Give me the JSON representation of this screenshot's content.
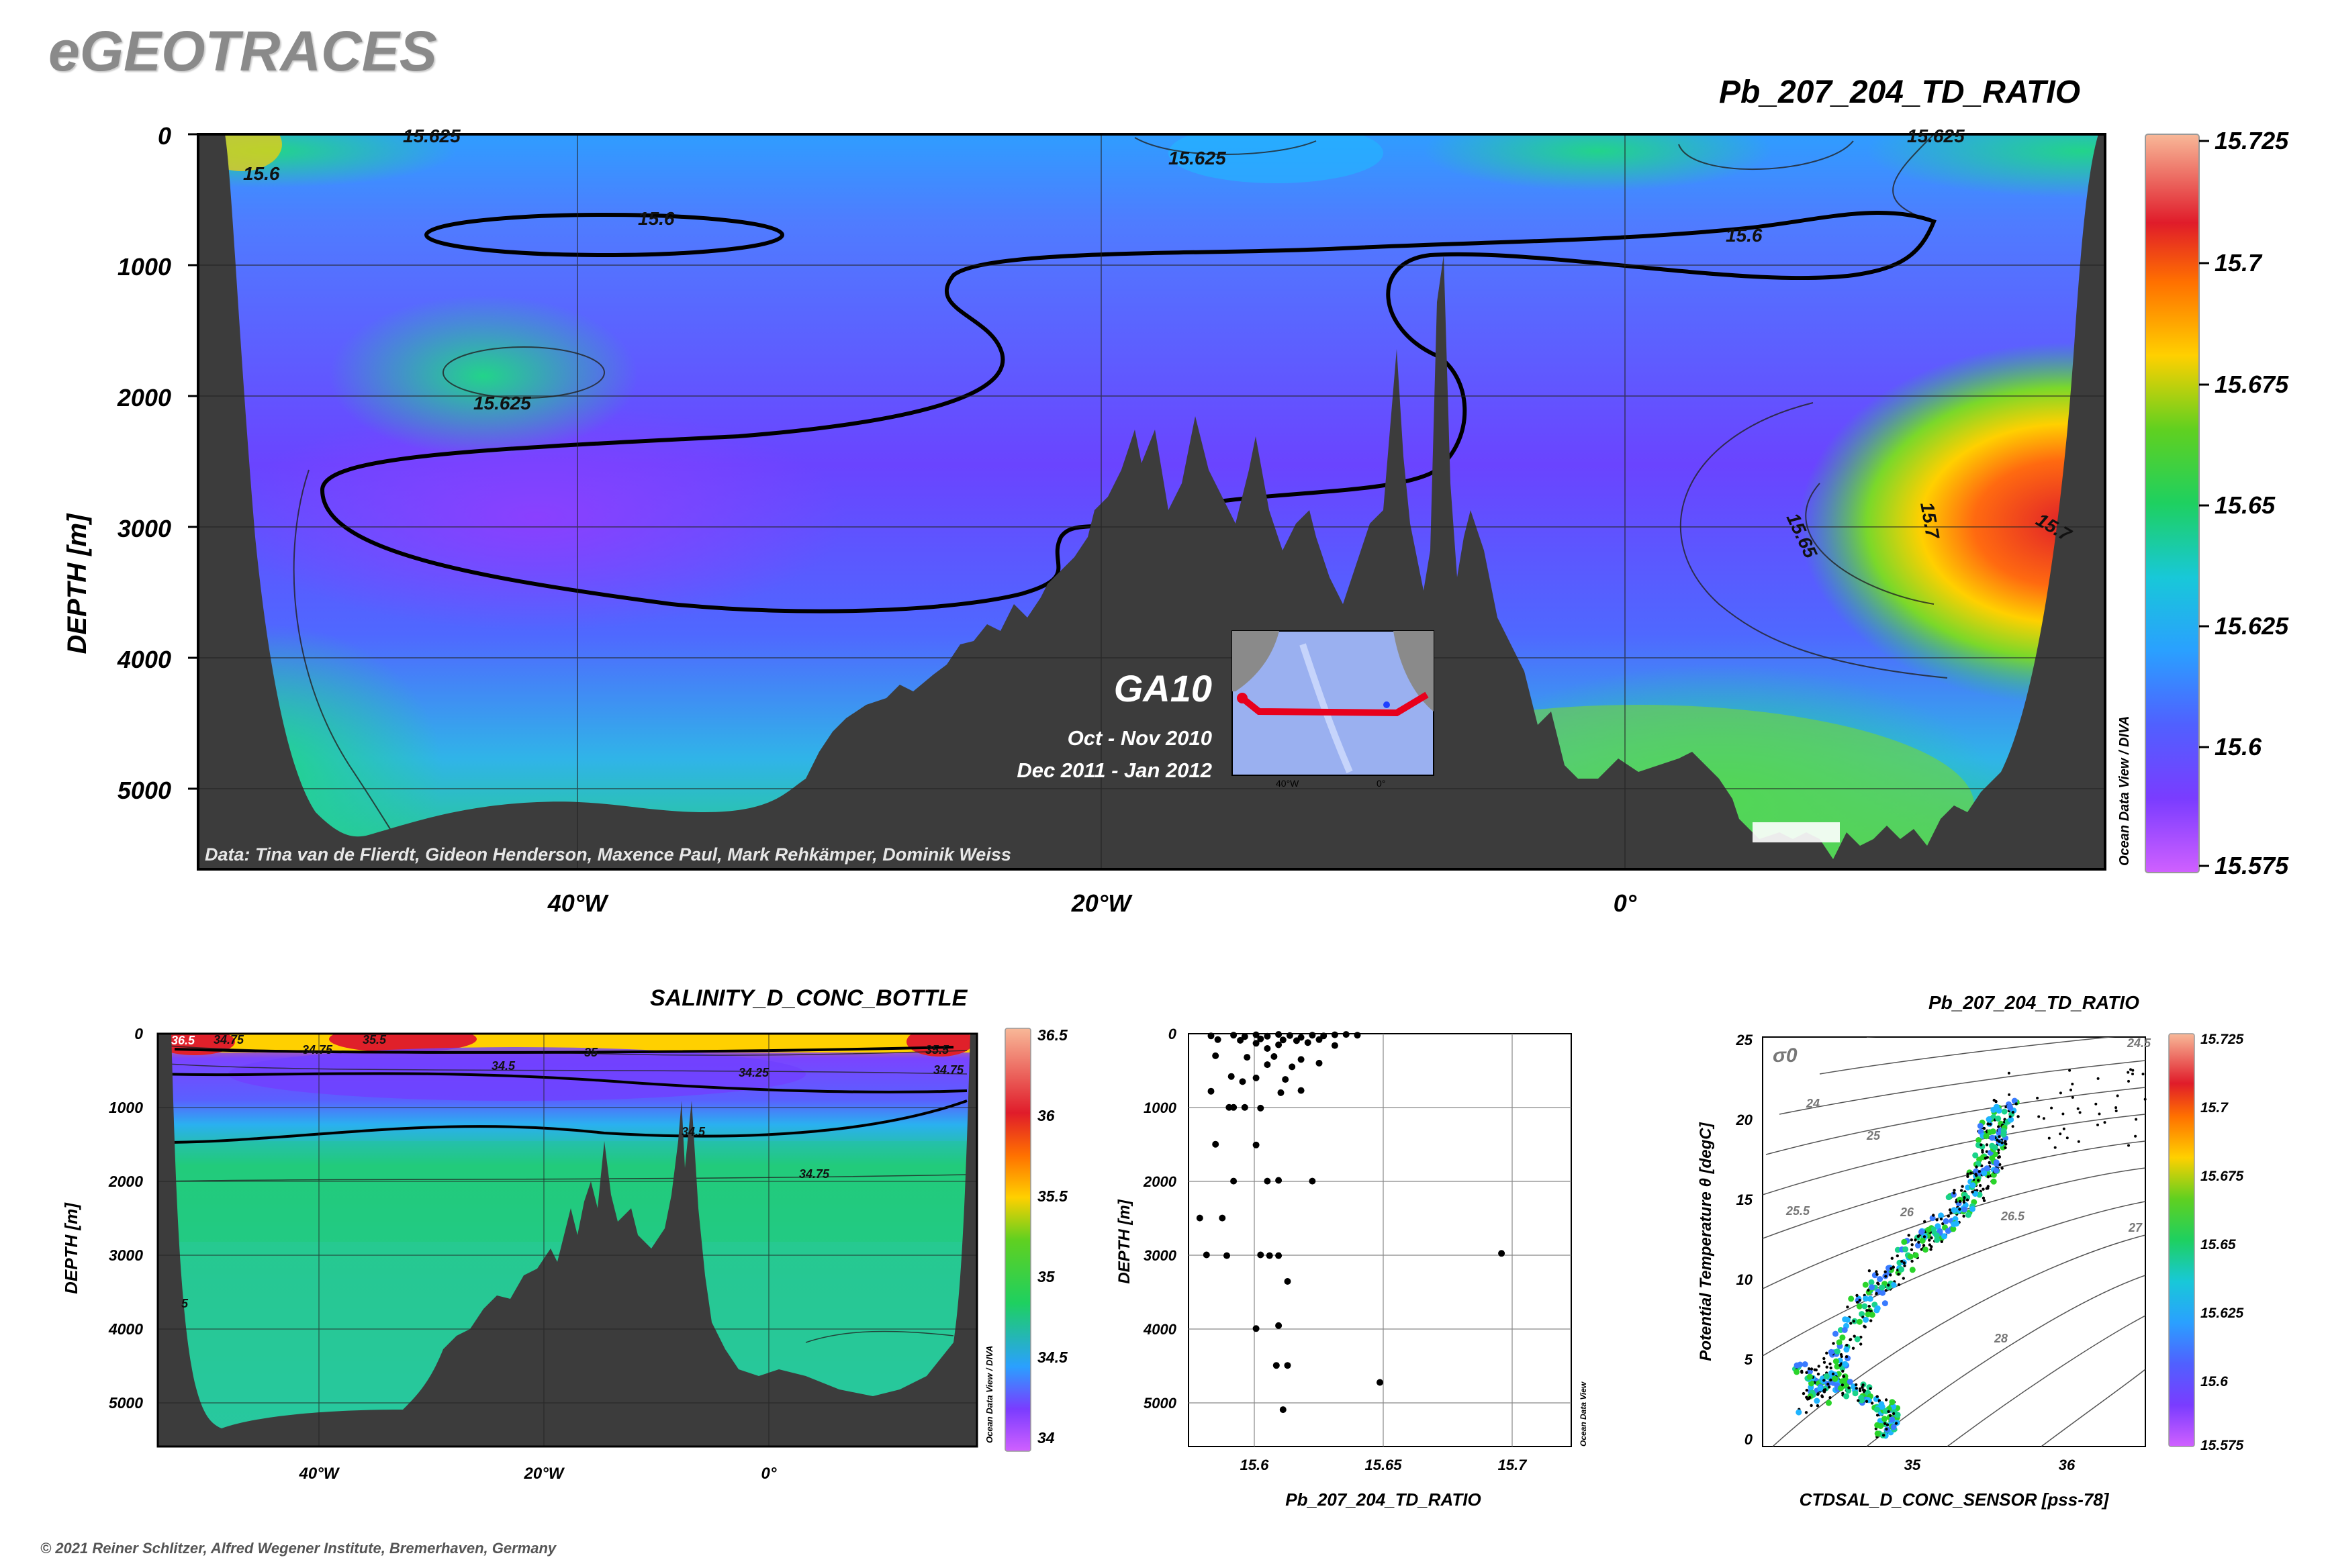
{
  "brand": "eGEOTRACES",
  "footer": "© 2021 Reiner Schlitzer, Alfred Wegener Institute, Bremerhaven, Germany",
  "odv_vertical_label": "Ocean Data View / DIVA",
  "odv_small_label": "Ocean Data View",
  "colors": {
    "seafloor": "#3c3c3c",
    "accent_track": "#e8001c",
    "colormap": [
      "#cc44ff",
      "#6a40ff",
      "#3a7bff",
      "#1fb4ff",
      "#19d38a",
      "#2ad42a",
      "#8adb1c",
      "#ffd000",
      "#ff8a00",
      "#e0202a",
      "#f0b0a0"
    ]
  },
  "chart_data": [
    {
      "id": "main_section",
      "type": "heatmap",
      "title": "Pb_207_204_TD_RATIO",
      "ylabel": "DEPTH [m]",
      "xlabel": "",
      "x_ticks": [
        "40°W",
        "20°W",
        "0°"
      ],
      "y_ticks": [
        "0",
        "1000",
        "2000",
        "3000",
        "4000",
        "5000"
      ],
      "ylim": [
        0,
        5600
      ],
      "colorbar": {
        "min": 15.575,
        "max": 15.725,
        "tick_labels": [
          "15.725",
          "15.7",
          "15.675",
          "15.65",
          "15.625",
          "15.6",
          "15.575"
        ]
      },
      "contour_labels": [
        "15.625",
        "15.6",
        "15.6",
        "15.625",
        "15.6",
        "15.625",
        "15.625",
        "15.65",
        "15.7",
        "15.7"
      ],
      "data_credit": "Data: Tina van de Flierdt, Gideon Henderson, Maxence Paul, Mark Rehkämper, Dominik Weiss",
      "inset": {
        "cruise": "GA10",
        "periods": [
          "Oct - Nov 2010",
          "Dec 2011 - Jan 2012"
        ],
        "axis_labels": [
          "40°W",
          "0°"
        ]
      }
    },
    {
      "id": "salinity_section",
      "type": "heatmap",
      "title": "SALINITY_D_CONC_BOTTLE",
      "ylabel": "DEPTH [m]",
      "x_ticks": [
        "40°W",
        "20°W",
        "0°"
      ],
      "y_ticks": [
        "0",
        "1000",
        "2000",
        "3000",
        "4000",
        "5000"
      ],
      "ylim": [
        0,
        5600
      ],
      "colorbar": {
        "min": 34,
        "max": 36.5,
        "tick_labels": [
          "36.5",
          "36",
          "35.5",
          "35",
          "34.5",
          "34"
        ]
      },
      "contour_labels": [
        "34.75",
        "35.5",
        "35",
        "34.75",
        "35.5",
        "34.5",
        "34.25",
        "34.75",
        "34.5",
        "34.75",
        "5",
        "36.5"
      ]
    },
    {
      "id": "profile_scatter",
      "type": "scatter",
      "title": "",
      "xlabel": "Pb_207_204_TD_RATIO",
      "ylabel": "DEPTH [m]",
      "xlim": [
        15.58,
        15.75
      ],
      "ylim": [
        5600,
        0
      ],
      "x_ticks": [
        "15.6",
        "15.65",
        "15.7"
      ],
      "y_ticks": [
        "0",
        "1000",
        "2000",
        "3000",
        "4000",
        "5000"
      ],
      "points": [
        [
          15.59,
          30
        ],
        [
          15.6,
          20
        ],
        [
          15.605,
          40
        ],
        [
          15.61,
          15
        ],
        [
          15.615,
          35
        ],
        [
          15.62,
          10
        ],
        [
          15.625,
          25
        ],
        [
          15.63,
          50
        ],
        [
          15.635,
          20
        ],
        [
          15.64,
          30
        ],
        [
          15.645,
          15
        ],
        [
          15.65,
          10
        ],
        [
          15.655,
          20
        ],
        [
          15.593,
          80
        ],
        [
          15.603,
          90
        ],
        [
          15.612,
          70
        ],
        [
          15.622,
          85
        ],
        [
          15.628,
          95
        ],
        [
          15.638,
          80
        ],
        [
          15.61,
          130
        ],
        [
          15.62,
          150
        ],
        [
          15.633,
          120
        ],
        [
          15.615,
          200
        ],
        [
          15.645,
          160
        ],
        [
          15.592,
          300
        ],
        [
          15.606,
          320
        ],
        [
          15.618,
          310
        ],
        [
          15.63,
          350
        ],
        [
          15.615,
          420
        ],
        [
          15.626,
          450
        ],
        [
          15.638,
          400
        ],
        [
          15.599,
          580
        ],
        [
          15.61,
          600
        ],
        [
          15.623,
          620
        ],
        [
          15.59,
          780
        ],
        [
          15.604,
          650
        ],
        [
          15.621,
          800
        ],
        [
          15.63,
          770
        ],
        [
          15.598,
          1000
        ],
        [
          15.605,
          1000
        ],
        [
          15.6,
          1000
        ],
        [
          15.612,
          1010
        ],
        [
          15.592,
          1500
        ],
        [
          15.61,
          1510
        ],
        [
          15.6,
          2000
        ],
        [
          15.615,
          2000
        ],
        [
          15.62,
          1990
        ],
        [
          15.635,
          2000
        ],
        [
          15.585,
          2500
        ],
        [
          15.595,
          2500
        ],
        [
          15.588,
          3000
        ],
        [
          15.597,
          3010
        ],
        [
          15.612,
          3000
        ],
        [
          15.616,
          3010
        ],
        [
          15.62,
          3010
        ],
        [
          15.624,
          3360
        ],
        [
          15.62,
          3960
        ],
        [
          15.61,
          4000
        ],
        [
          15.624,
          4500
        ],
        [
          15.619,
          4500
        ],
        [
          15.665,
          4730
        ],
        [
          15.622,
          5100
        ],
        [
          15.719,
          2980
        ]
      ]
    },
    {
      "id": "ts_diagram",
      "type": "scatter",
      "title": "Pb_207_204_TD_RATIO",
      "xlabel": "CTDSAL_D_CONC_SENSOR [pss-78]",
      "ylabel": "Potential Temperature θ [degC]",
      "xlim": [
        34.0,
        36.5
      ],
      "ylim": [
        -0.5,
        25
      ],
      "x_ticks": [
        "35",
        "36"
      ],
      "y_ticks": [
        "0",
        "5",
        "10",
        "15",
        "20",
        "25"
      ],
      "sigma_label": "σ0",
      "isopycnal_labels": [
        "24",
        "24.5",
        "25",
        "25.5",
        "26",
        "26.5",
        "27",
        "27",
        "28"
      ],
      "colorbar": {
        "min": 15.575,
        "max": 15.725,
        "tick_labels": [
          "15.725",
          "15.7",
          "15.675",
          "15.65",
          "15.625",
          "15.6",
          "15.575"
        ]
      }
    }
  ]
}
